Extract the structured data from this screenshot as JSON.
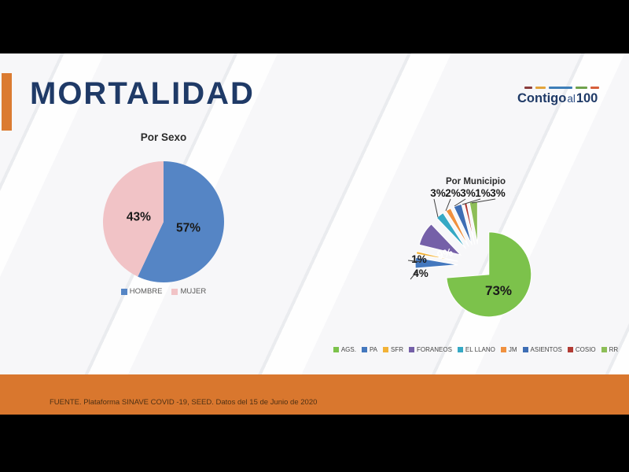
{
  "slide": {
    "title": "MORTALIDAD",
    "footer": "FUENTE. Plataforma SINAVE COVID -19, SEED. Datos del 15 de Junio de 2020",
    "logo": {
      "part1": "Contigo",
      "part2": "al",
      "part3": "100",
      "dash_colors": [
        "#8b3d3d",
        "#e3a43b",
        "#3d7eb8",
        "#6fa24d",
        "#d65f3b"
      ]
    },
    "colors": {
      "accent_orange": "#db7b31",
      "footer_orange": "#d9772e",
      "title_navy": "#1f3a67"
    }
  },
  "chart_data": [
    {
      "type": "pie",
      "title": "Por Sexo",
      "categories": [
        "HOMBRE",
        "MUJER"
      ],
      "values": [
        57,
        43
      ],
      "labels": [
        "57%",
        "43%"
      ],
      "colors": [
        "#5585c5",
        "#f1c3c6"
      ],
      "legend_position": "bottom",
      "exploded": false
    },
    {
      "type": "pie",
      "title": "Por Municipio",
      "categories": [
        "AGS.",
        "PA",
        "SFR",
        "FORANEOS",
        "EL LLANO",
        "JM",
        "ASIENTOS",
        "COSIO",
        "RR"
      ],
      "values": [
        73,
        4,
        1,
        9,
        3,
        2,
        3,
        1,
        3
      ],
      "labels": [
        "73%",
        "4%",
        "1%",
        "9%",
        "3%",
        "2%",
        "3%",
        "1%",
        "3%"
      ],
      "colors": [
        "#7cc24b",
        "#4478be",
        "#f2b237",
        "#7560a8",
        "#36a9c5",
        "#f0913f",
        "#3e6eb5",
        "#b23b34",
        "#8dbe57"
      ],
      "legend_position": "bottom",
      "exploded": true
    }
  ]
}
